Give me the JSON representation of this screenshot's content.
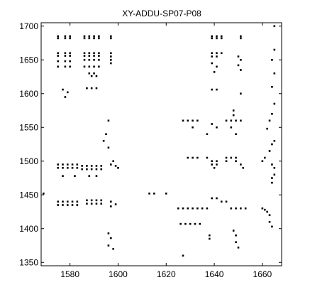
{
  "chart_data": {
    "type": "scatter",
    "title": "XY-ADDU-SP07-P08",
    "xlabel": "",
    "ylabel": "",
    "xlim": [
      1568,
      1668
    ],
    "ylim": [
      1345,
      1705
    ],
    "x_ticks": [
      1580,
      1600,
      1620,
      1640,
      1660
    ],
    "y_ticks": [
      1350,
      1400,
      1450,
      1500,
      1550,
      1600,
      1650,
      1700
    ],
    "grid": false,
    "marker": "square",
    "marker_color": "#000000",
    "series": [
      {
        "values": [
          [
            1575,
            1685
          ],
          [
            1575,
            1682
          ],
          [
            1578,
            1685
          ],
          [
            1578,
            1682
          ],
          [
            1580,
            1685
          ],
          [
            1580,
            1682
          ],
          [
            1586,
            1685
          ],
          [
            1586,
            1682
          ],
          [
            1588,
            1685
          ],
          [
            1588,
            1682
          ],
          [
            1590,
            1685
          ],
          [
            1590,
            1682
          ],
          [
            1592,
            1685
          ],
          [
            1592,
            1682
          ],
          [
            1597,
            1685
          ],
          [
            1597,
            1682
          ],
          [
            1639,
            1685
          ],
          [
            1639,
            1682
          ],
          [
            1641,
            1685
          ],
          [
            1641,
            1682
          ],
          [
            1643,
            1685
          ],
          [
            1643,
            1682
          ],
          [
            1651,
            1685
          ],
          [
            1651,
            1682
          ],
          [
            1575,
            1660
          ],
          [
            1575,
            1656
          ],
          [
            1578,
            1660
          ],
          [
            1578,
            1656
          ],
          [
            1580,
            1660
          ],
          [
            1580,
            1656
          ],
          [
            1575,
            1648
          ],
          [
            1578,
            1648
          ],
          [
            1580,
            1648
          ],
          [
            1575,
            1640
          ],
          [
            1578,
            1640
          ],
          [
            1580,
            1640
          ],
          [
            1586,
            1660
          ],
          [
            1586,
            1656
          ],
          [
            1588,
            1660
          ],
          [
            1588,
            1656
          ],
          [
            1590,
            1660
          ],
          [
            1590,
            1656
          ],
          [
            1592,
            1660
          ],
          [
            1592,
            1656
          ],
          [
            1586,
            1650
          ],
          [
            1588,
            1650
          ],
          [
            1590,
            1650
          ],
          [
            1592,
            1650
          ],
          [
            1586,
            1640
          ],
          [
            1588,
            1640
          ],
          [
            1590,
            1640
          ],
          [
            1592,
            1640
          ],
          [
            1588,
            1630
          ],
          [
            1590,
            1630
          ],
          [
            1589,
            1626
          ],
          [
            1591,
            1626
          ],
          [
            1597,
            1660
          ],
          [
            1597,
            1655
          ],
          [
            1597,
            1650
          ],
          [
            1597,
            1645
          ],
          [
            1639,
            1660
          ],
          [
            1641,
            1660
          ],
          [
            1643,
            1660
          ],
          [
            1639,
            1655
          ],
          [
            1641,
            1655
          ],
          [
            1639,
            1645
          ],
          [
            1641,
            1640
          ],
          [
            1640,
            1632
          ],
          [
            1650,
            1655
          ],
          [
            1651,
            1650
          ],
          [
            1650,
            1642
          ],
          [
            1651,
            1635
          ],
          [
            1577,
            1606
          ],
          [
            1579,
            1602
          ],
          [
            1578,
            1595
          ],
          [
            1587,
            1608
          ],
          [
            1589,
            1608
          ],
          [
            1591,
            1608
          ],
          [
            1639,
            1606
          ],
          [
            1641,
            1606
          ],
          [
            1651,
            1600
          ],
          [
            1596,
            1560
          ],
          [
            1595,
            1540
          ],
          [
            1594,
            1530
          ],
          [
            1596,
            1520
          ],
          [
            1627,
            1560
          ],
          [
            1629,
            1560
          ],
          [
            1631,
            1560
          ],
          [
            1633,
            1560
          ],
          [
            1631,
            1550
          ],
          [
            1639,
            1555
          ],
          [
            1641,
            1550
          ],
          [
            1637,
            1540
          ],
          [
            1645,
            1560
          ],
          [
            1647,
            1560
          ],
          [
            1649,
            1560
          ],
          [
            1651,
            1560
          ],
          [
            1648,
            1568
          ],
          [
            1648,
            1575
          ],
          [
            1647,
            1550
          ],
          [
            1649,
            1540
          ],
          [
            1575,
            1495
          ],
          [
            1577,
            1495
          ],
          [
            1579,
            1495
          ],
          [
            1581,
            1495
          ],
          [
            1583,
            1495
          ],
          [
            1575,
            1490
          ],
          [
            1577,
            1490
          ],
          [
            1579,
            1490
          ],
          [
            1581,
            1490
          ],
          [
            1583,
            1490
          ],
          [
            1585,
            1493
          ],
          [
            1587,
            1493
          ],
          [
            1589,
            1493
          ],
          [
            1591,
            1493
          ],
          [
            1593,
            1493
          ],
          [
            1585,
            1488
          ],
          [
            1587,
            1488
          ],
          [
            1589,
            1488
          ],
          [
            1591,
            1488
          ],
          [
            1593,
            1488
          ],
          [
            1597,
            1495
          ],
          [
            1599,
            1493
          ],
          [
            1598,
            1500
          ],
          [
            1600,
            1490
          ],
          [
            1577,
            1478
          ],
          [
            1582,
            1478
          ],
          [
            1588,
            1478
          ],
          [
            1591,
            1478
          ],
          [
            1629,
            1505
          ],
          [
            1631,
            1505
          ],
          [
            1633,
            1505
          ],
          [
            1637,
            1505
          ],
          [
            1639,
            1500
          ],
          [
            1641,
            1500
          ],
          [
            1639,
            1495
          ],
          [
            1641,
            1495
          ],
          [
            1640,
            1490
          ],
          [
            1645,
            1505
          ],
          [
            1647,
            1505
          ],
          [
            1649,
            1505
          ],
          [
            1645,
            1500
          ],
          [
            1649,
            1500
          ],
          [
            1651,
            1495
          ],
          [
            1652,
            1490
          ],
          [
            1575,
            1440
          ],
          [
            1577,
            1440
          ],
          [
            1579,
            1440
          ],
          [
            1581,
            1440
          ],
          [
            1583,
            1440
          ],
          [
            1575,
            1435
          ],
          [
            1577,
            1435
          ],
          [
            1579,
            1435
          ],
          [
            1581,
            1435
          ],
          [
            1583,
            1435
          ],
          [
            1587,
            1442
          ],
          [
            1589,
            1442
          ],
          [
            1591,
            1442
          ],
          [
            1593,
            1442
          ],
          [
            1587,
            1437
          ],
          [
            1589,
            1437
          ],
          [
            1591,
            1437
          ],
          [
            1593,
            1437
          ],
          [
            1597,
            1440
          ],
          [
            1599,
            1436
          ],
          [
            1597,
            1433
          ],
          [
            1569,
            1452
          ],
          [
            1613,
            1452
          ],
          [
            1615,
            1452
          ],
          [
            1620,
            1452
          ],
          [
            1625,
            1430
          ],
          [
            1627,
            1430
          ],
          [
            1629,
            1430
          ],
          [
            1631,
            1430
          ],
          [
            1633,
            1430
          ],
          [
            1635,
            1430
          ],
          [
            1637,
            1430
          ],
          [
            1639,
            1445
          ],
          [
            1641,
            1445
          ],
          [
            1643,
            1440
          ],
          [
            1645,
            1440
          ],
          [
            1647,
            1430
          ],
          [
            1649,
            1430
          ],
          [
            1651,
            1430
          ],
          [
            1653,
            1430
          ],
          [
            1626,
            1407
          ],
          [
            1628,
            1407
          ],
          [
            1630,
            1407
          ],
          [
            1632,
            1407
          ],
          [
            1634,
            1407
          ],
          [
            1638,
            1390
          ],
          [
            1638,
            1385
          ],
          [
            1648,
            1397
          ],
          [
            1649,
            1390
          ],
          [
            1649,
            1380
          ],
          [
            1650,
            1372
          ],
          [
            1596,
            1393
          ],
          [
            1597,
            1386
          ],
          [
            1596,
            1375
          ],
          [
            1598,
            1370
          ],
          [
            1627,
            1360
          ],
          [
            1660,
            1430
          ],
          [
            1661,
            1428
          ],
          [
            1662,
            1425
          ],
          [
            1663,
            1420
          ],
          [
            1663,
            1410
          ],
          [
            1664,
            1403
          ],
          [
            1664,
            1468
          ],
          [
            1664,
            1475
          ],
          [
            1665,
            1480
          ],
          [
            1665,
            1490
          ],
          [
            1664,
            1495
          ],
          [
            1660,
            1500
          ],
          [
            1661,
            1505
          ],
          [
            1663,
            1515
          ],
          [
            1664,
            1525
          ],
          [
            1665,
            1530
          ],
          [
            1662,
            1548
          ],
          [
            1663,
            1560
          ],
          [
            1664,
            1570
          ],
          [
            1665,
            1585
          ],
          [
            1664,
            1610
          ],
          [
            1665,
            1630
          ],
          [
            1664,
            1650
          ],
          [
            1665,
            1665
          ],
          [
            1665,
            1700
          ]
        ]
      }
    ]
  }
}
